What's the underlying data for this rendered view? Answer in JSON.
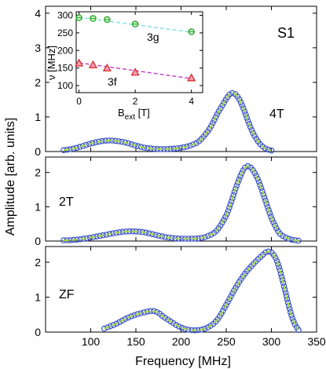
{
  "figure": {
    "shared_x_label": "Frequency [MHz]",
    "shared_y_label": "Amplitude  [arb. units]",
    "sample_label": "S1"
  },
  "colors": {
    "data_circle": "#3c53c8",
    "fit_line": "#a6d84c",
    "inset_3g_marker": "#23a523",
    "inset_3g_line": "#7fe0e0",
    "inset_3f_marker": "#d62b2b",
    "inset_3f_fill": "#f7a0b8",
    "inset_3f_line": "#c43cc4"
  },
  "chart_data": [
    {
      "type": "scatter",
      "panel_label": "4T",
      "xlim": [
        50,
        350
      ],
      "ylim": [
        0,
        4.2
      ],
      "y_ticks": [
        0,
        1,
        2,
        3,
        4
      ],
      "x_ticks": [
        100,
        150,
        200,
        250,
        300,
        350
      ],
      "series": [
        {
          "role": "data",
          "x": [
            70,
            80,
            90,
            100,
            110,
            120,
            130,
            140,
            150,
            160,
            170,
            180,
            190,
            200,
            210,
            220,
            230,
            235,
            240,
            245,
            250,
            255,
            260,
            265,
            270,
            275,
            280,
            285,
            290,
            295,
            300
          ],
          "y": [
            0.04,
            0.08,
            0.15,
            0.23,
            0.29,
            0.32,
            0.3,
            0.25,
            0.17,
            0.11,
            0.08,
            0.07,
            0.08,
            0.11,
            0.17,
            0.3,
            0.6,
            0.82,
            1.08,
            1.3,
            1.52,
            1.68,
            1.66,
            1.48,
            1.18,
            0.82,
            0.52,
            0.3,
            0.15,
            0.07,
            0.03
          ]
        },
        {
          "role": "fit",
          "x": [
            70,
            80,
            90,
            100,
            110,
            120,
            130,
            140,
            150,
            160,
            170,
            180,
            190,
            200,
            210,
            220,
            230,
            235,
            240,
            245,
            250,
            255,
            260,
            265,
            270,
            275,
            280,
            285,
            290,
            295,
            300
          ],
          "y": [
            0.04,
            0.08,
            0.15,
            0.23,
            0.29,
            0.32,
            0.3,
            0.25,
            0.17,
            0.11,
            0.08,
            0.07,
            0.08,
            0.11,
            0.17,
            0.3,
            0.6,
            0.82,
            1.08,
            1.3,
            1.52,
            1.68,
            1.66,
            1.48,
            1.18,
            0.82,
            0.52,
            0.3,
            0.15,
            0.07,
            0.03
          ]
        }
      ]
    },
    {
      "type": "scatter",
      "panel_label": "2T",
      "xlim": [
        50,
        350
      ],
      "ylim": [
        0,
        2.45
      ],
      "y_ticks": [
        0,
        1,
        2
      ],
      "x_ticks": [
        100,
        150,
        200,
        250,
        300,
        350
      ],
      "series": [
        {
          "role": "data",
          "x": [
            70,
            80,
            90,
            100,
            110,
            120,
            130,
            140,
            150,
            160,
            170,
            180,
            190,
            200,
            210,
            220,
            230,
            240,
            250,
            255,
            260,
            265,
            270,
            275,
            280,
            285,
            290,
            295,
            300,
            305,
            310,
            320,
            330
          ],
          "y": [
            0.02,
            0.03,
            0.06,
            0.1,
            0.15,
            0.2,
            0.25,
            0.28,
            0.28,
            0.25,
            0.19,
            0.13,
            0.09,
            0.07,
            0.07,
            0.08,
            0.15,
            0.32,
            0.75,
            1.1,
            1.5,
            1.85,
            2.12,
            2.18,
            2.05,
            1.8,
            1.45,
            1.05,
            0.68,
            0.4,
            0.2,
            0.06,
            0.01
          ]
        },
        {
          "role": "fit",
          "x": [
            70,
            80,
            90,
            100,
            110,
            120,
            130,
            140,
            150,
            160,
            170,
            180,
            190,
            200,
            210,
            220,
            230,
            240,
            250,
            255,
            260,
            265,
            270,
            275,
            280,
            285,
            290,
            295,
            300,
            305,
            310,
            320,
            330
          ],
          "y": [
            0.02,
            0.03,
            0.06,
            0.1,
            0.15,
            0.2,
            0.25,
            0.28,
            0.28,
            0.25,
            0.19,
            0.13,
            0.09,
            0.07,
            0.07,
            0.08,
            0.15,
            0.32,
            0.75,
            1.1,
            1.5,
            1.85,
            2.12,
            2.18,
            2.05,
            1.8,
            1.45,
            1.05,
            0.68,
            0.4,
            0.2,
            0.06,
            0.01
          ]
        }
      ]
    },
    {
      "type": "scatter",
      "panel_label": "ZF",
      "xlim": [
        50,
        350
      ],
      "ylim": [
        0,
        2.45
      ],
      "y_ticks": [
        0,
        1,
        2
      ],
      "x_ticks": [
        100,
        150,
        200,
        250,
        300,
        350
      ],
      "x_tick_labels": [
        "100",
        "150",
        "200",
        "250",
        "300",
        "350"
      ],
      "series": [
        {
          "role": "data",
          "x": [
            115,
            120,
            130,
            140,
            150,
            160,
            165,
            170,
            175,
            180,
            190,
            200,
            210,
            220,
            230,
            240,
            250,
            260,
            270,
            280,
            290,
            295,
            300,
            305,
            310,
            315,
            320,
            325,
            330
          ],
          "y": [
            0.1,
            0.15,
            0.26,
            0.4,
            0.5,
            0.57,
            0.6,
            0.6,
            0.55,
            0.45,
            0.28,
            0.13,
            0.06,
            0.06,
            0.14,
            0.35,
            0.78,
            1.25,
            1.65,
            1.95,
            2.2,
            2.3,
            2.28,
            2.1,
            1.72,
            1.2,
            0.68,
            0.28,
            0.06
          ]
        },
        {
          "role": "fit",
          "x": [
            115,
            120,
            130,
            140,
            150,
            160,
            165,
            170,
            175,
            180,
            190,
            200,
            210,
            220,
            230,
            240,
            250,
            260,
            270,
            280,
            290,
            295,
            300,
            305,
            310,
            315,
            320,
            325,
            330
          ],
          "y": [
            0.1,
            0.15,
            0.26,
            0.4,
            0.5,
            0.57,
            0.6,
            0.6,
            0.55,
            0.45,
            0.28,
            0.13,
            0.06,
            0.06,
            0.14,
            0.35,
            0.78,
            1.25,
            1.65,
            1.95,
            2.2,
            2.3,
            2.28,
            2.1,
            1.72,
            1.2,
            0.68,
            0.28,
            0.06
          ]
        }
      ]
    },
    {
      "type": "scatter",
      "panel_label": "inset",
      "xlabel": "B",
      "xlabel_sub": "ext",
      "xlabel_unit": " [T]",
      "ylabel": "ν [MHz]",
      "xlim": [
        -0.1,
        4.4
      ],
      "ylim": [
        80,
        310
      ],
      "x_ticks": [
        0,
        2,
        4
      ],
      "y_ticks": [
        100,
        150,
        200,
        250,
        300
      ],
      "series": [
        {
          "name": "3g",
          "x": [
            0,
            0.5,
            1.0,
            2.0,
            4.0
          ],
          "y": [
            293,
            291,
            288,
            275,
            253
          ],
          "err": [
            6,
            6,
            6,
            6,
            8
          ],
          "marker": "circle",
          "fit": {
            "x": [
              0,
              4
            ],
            "y": [
              294,
              252
            ]
          }
        },
        {
          "name": "3f",
          "x": [
            0,
            0.5,
            1.0,
            2.0,
            4.0
          ],
          "y": [
            164,
            159,
            150,
            138,
            122
          ],
          "err": [
            5,
            5,
            5,
            5,
            5
          ],
          "marker": "triangle",
          "fit": {
            "x": [
              0,
              4
            ],
            "y": [
              165,
              120
            ]
          }
        }
      ]
    }
  ]
}
